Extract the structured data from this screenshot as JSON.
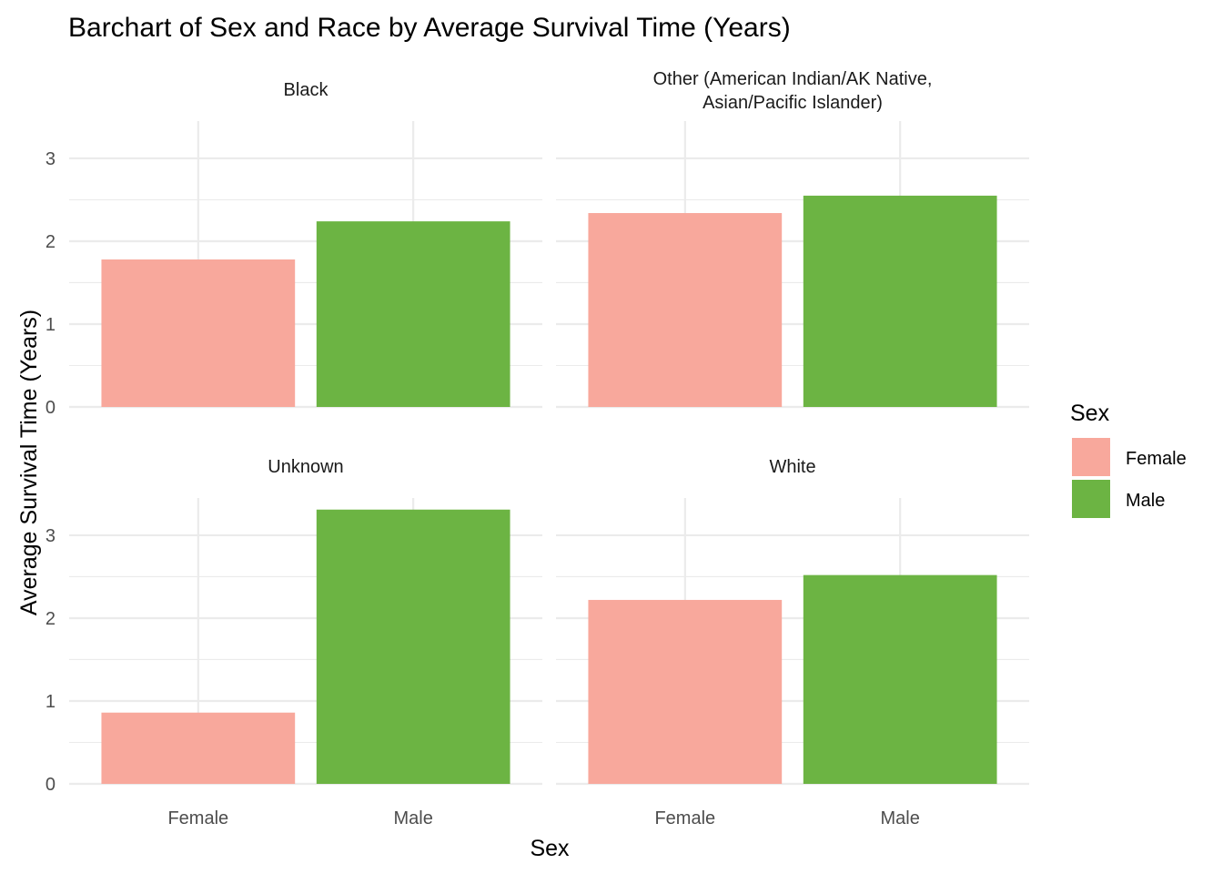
{
  "chart_data": {
    "type": "bar",
    "title": "Barchart of Sex and Race by Average Survival Time (Years)",
    "xlabel": "Sex",
    "ylabel": "Average Survival Time (Years)",
    "ylim": [
      0,
      3.45
    ],
    "yticks": [
      0,
      1,
      2,
      3
    ],
    "grid": true,
    "categories": [
      "Female",
      "Male"
    ],
    "legend": {
      "title": "Sex",
      "placement": "right",
      "entries": [
        {
          "label": "Female",
          "color": "#F8A89C"
        },
        {
          "label": "Male",
          "color": "#6CB443"
        }
      ]
    },
    "panels": [
      {
        "label": [
          "Black"
        ],
        "values": [
          1.78,
          2.24
        ]
      },
      {
        "label": [
          "Other (American Indian/AK Native,",
          "Asian/Pacific Islander)"
        ],
        "values": [
          2.34,
          2.55
        ]
      },
      {
        "label": [
          "Unknown"
        ],
        "values": [
          0.86,
          3.31
        ]
      },
      {
        "label": [
          "White"
        ],
        "values": [
          2.22,
          2.52
        ]
      }
    ]
  }
}
